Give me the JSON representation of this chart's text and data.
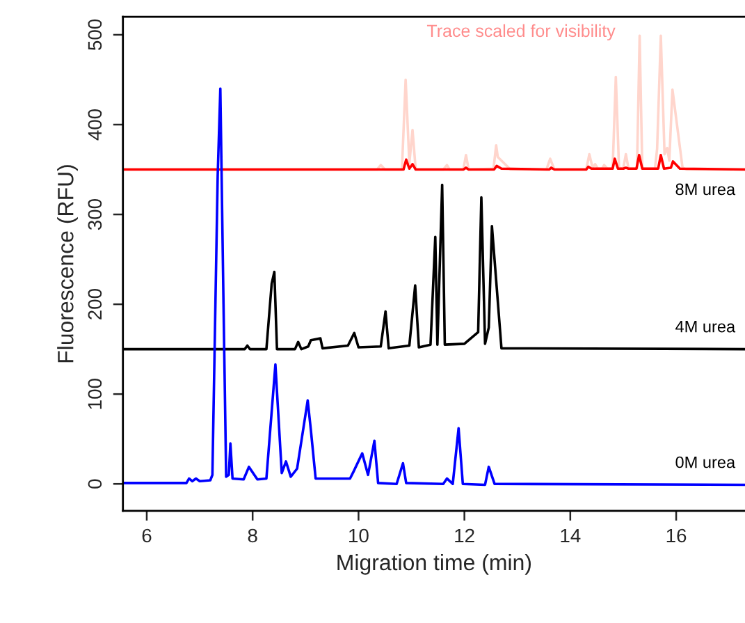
{
  "chart_data": {
    "type": "line",
    "xlabel": "Migration time (min)",
    "ylabel": "Fluorescence (RFU)",
    "xlim": [
      5.55,
      17.3
    ],
    "xticks": [
      6,
      8,
      10,
      12,
      14,
      16
    ],
    "ylim": [
      -30,
      520
    ],
    "yticks": [
      0,
      100,
      200,
      300,
      400,
      500
    ],
    "grid": false,
    "legend": false,
    "marker": "none",
    "line_style": "solid",
    "annotations": [
      "Trace scaled for visibility"
    ],
    "series": [
      {
        "color": "#ffd5cc",
        "x": [
          5.55,
          10.35,
          10.42,
          10.5,
          10.82,
          10.89,
          10.96,
          11.02,
          11.08,
          11.6,
          11.67,
          11.72,
          11.98,
          12.03,
          12.08,
          12.55,
          12.6,
          12.63,
          12.87,
          13.55,
          13.62,
          13.7,
          14.3,
          14.36,
          14.42,
          14.47,
          14.52,
          14.6,
          14.64,
          14.7,
          14.8,
          14.86,
          14.92,
          15.0,
          15.05,
          15.1,
          15.26,
          15.31,
          15.36,
          15.6,
          15.64,
          15.71,
          15.78,
          15.83,
          15.87,
          15.93,
          16.12,
          16.2,
          17.3
        ],
        "values": [
          350,
          350,
          355,
          350,
          350,
          450,
          357,
          394,
          350,
          350,
          355,
          350,
          350,
          366,
          350,
          351,
          377,
          364,
          350,
          350,
          362,
          350,
          350,
          367,
          352,
          356,
          351,
          351,
          355,
          351,
          351,
          453,
          352,
          351,
          367,
          351,
          351,
          499,
          351,
          351,
          373,
          499,
          367,
          374,
          360,
          439,
          352,
          350,
          350
        ]
      },
      {
        "name": "8M urea",
        "color": "#ff0000",
        "x": [
          5.55,
          10.85,
          10.9,
          10.96,
          11.02,
          11.08,
          11.98,
          12.03,
          12.08,
          12.56,
          12.61,
          12.7,
          13.6,
          13.64,
          13.7,
          14.3,
          14.34,
          14.4,
          14.8,
          14.84,
          14.9,
          15.0,
          15.05,
          15.1,
          15.25,
          15.3,
          15.36,
          15.66,
          15.71,
          15.77,
          15.9,
          15.94,
          16.07,
          17.3
        ],
        "values": [
          350,
          350,
          361,
          351,
          356,
          350,
          350,
          352,
          350,
          350,
          354,
          351,
          350,
          352,
          350,
          350,
          353,
          351,
          351,
          362,
          351,
          351,
          352,
          351,
          351,
          366,
          351,
          351,
          366,
          351,
          352,
          359,
          351,
          350
        ]
      },
      {
        "name": "4M urea",
        "color": "#000000",
        "x": [
          5.55,
          7.85,
          7.9,
          7.95,
          8.26,
          8.36,
          8.41,
          8.46,
          8.8,
          8.86,
          8.92,
          9.05,
          9.1,
          9.28,
          9.32,
          9.8,
          9.92,
          10.0,
          10.42,
          10.51,
          10.57,
          10.96,
          11.07,
          11.14,
          11.36,
          11.45,
          11.49,
          11.58,
          11.63,
          12.0,
          12.26,
          12.32,
          12.39,
          12.46,
          12.52,
          12.7,
          17.3
        ],
        "values": [
          150,
          150,
          154,
          150,
          150,
          223,
          236,
          150,
          150,
          158,
          150,
          153,
          160,
          162,
          151,
          154,
          168,
          152,
          153,
          192,
          151,
          154,
          221,
          152,
          155,
          275,
          155,
          333,
          155,
          156,
          169,
          319,
          156,
          174,
          287,
          151,
          150
        ]
      },
      {
        "name": "0M urea",
        "color": "#0000ff",
        "x": [
          5.55,
          6.75,
          6.8,
          6.86,
          6.93,
          7.0,
          7.2,
          7.24,
          7.34,
          7.39,
          7.45,
          7.5,
          7.55,
          7.58,
          7.62,
          7.83,
          7.93,
          8.09,
          8.26,
          8.43,
          8.55,
          8.63,
          8.72,
          8.84,
          9.04,
          9.1,
          9.19,
          9.84,
          9.9,
          10.07,
          10.18,
          10.3,
          10.37,
          10.72,
          10.84,
          10.9,
          11.6,
          11.67,
          11.78,
          11.89,
          11.97,
          12.39,
          12.46,
          12.57,
          17.3
        ],
        "values": [
          1,
          1,
          6,
          3,
          6,
          3,
          4,
          10,
          343,
          440,
          200,
          8,
          10,
          45,
          6,
          5,
          19,
          5,
          6,
          133,
          12,
          25,
          8,
          17,
          93,
          60,
          6,
          6,
          13,
          34,
          10,
          48,
          1,
          0,
          23,
          1,
          0,
          6,
          0,
          62,
          0,
          -1,
          19,
          0,
          -1
        ]
      }
    ]
  }
}
